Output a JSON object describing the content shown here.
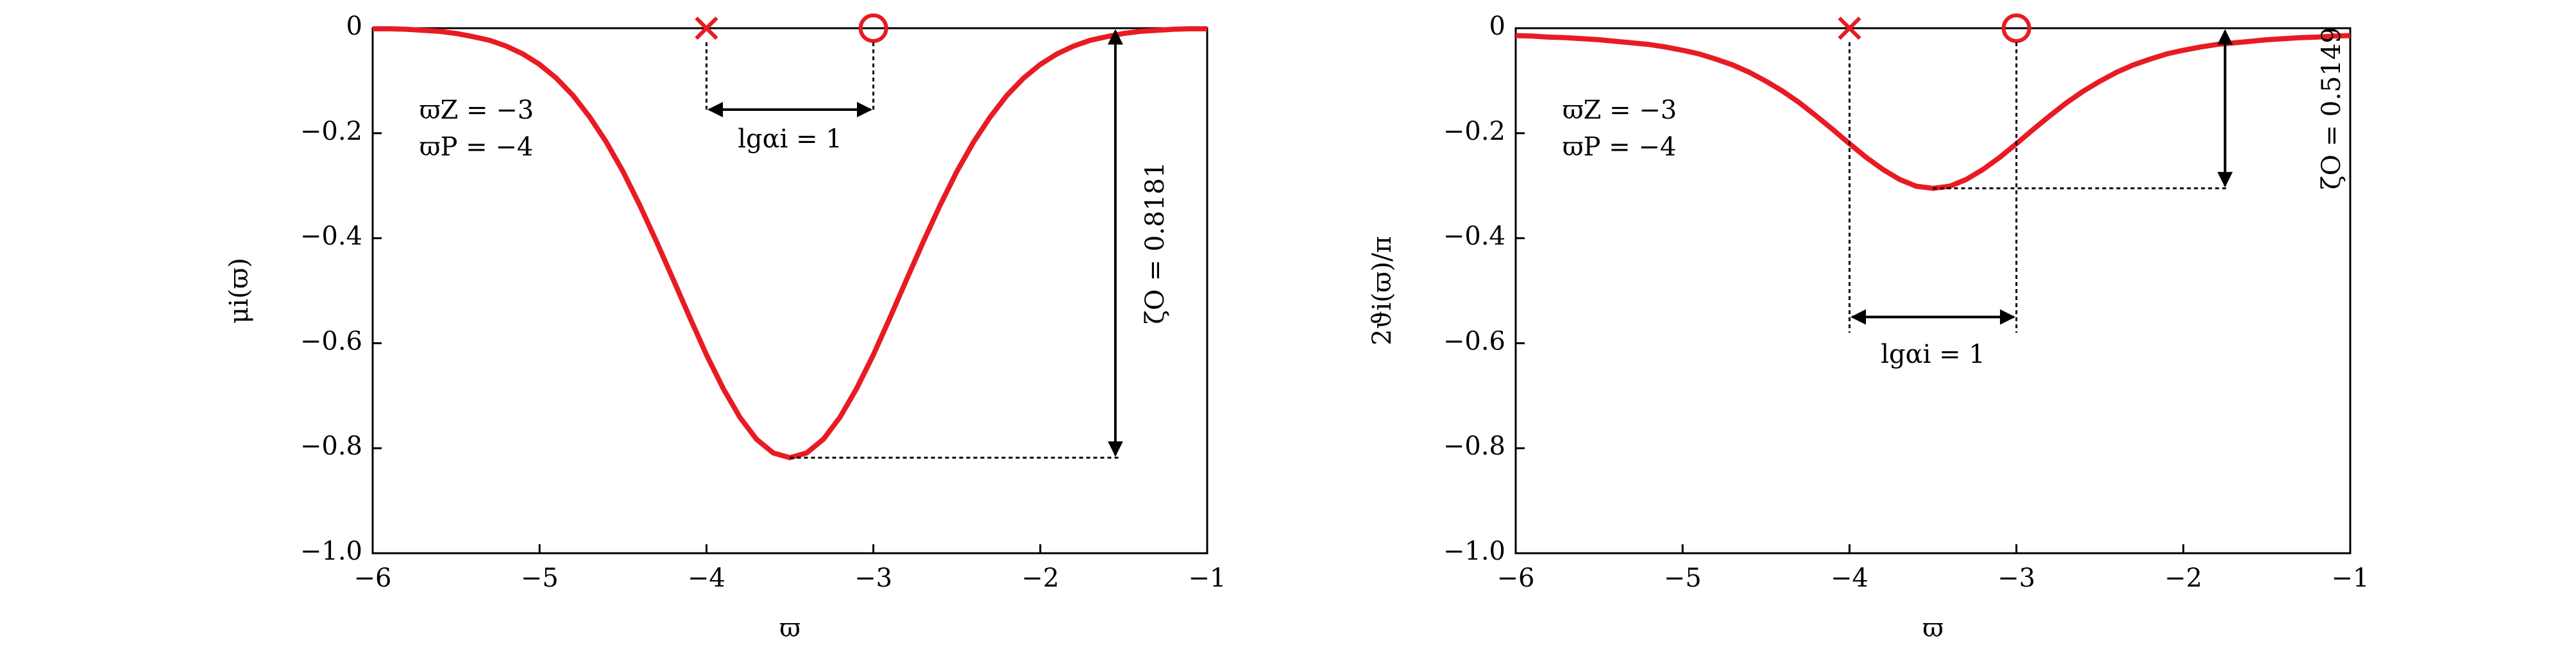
{
  "chart_data": [
    {
      "type": "line",
      "x_label": "ϖ",
      "y_label": "μi(ϖ)",
      "x": [
        -6.0,
        -5.9,
        -5.8,
        -5.7,
        -5.6,
        -5.5,
        -5.4,
        -5.3,
        -5.2,
        -5.1,
        -5.0,
        -4.9,
        -4.8,
        -4.7,
        -4.6,
        -4.5,
        -4.4,
        -4.3,
        -4.2,
        -4.1,
        -4.0,
        -3.9,
        -3.8,
        -3.7,
        -3.6,
        -3.5,
        -3.4,
        -3.3,
        -3.2,
        -3.1,
        -3.0,
        -2.9,
        -2.8,
        -2.7,
        -2.6,
        -2.5,
        -2.4,
        -2.3,
        -2.2,
        -2.1,
        -2.0,
        -1.9,
        -1.8,
        -1.7,
        -1.6,
        -1.5,
        -1.4,
        -1.3,
        -1.2,
        -1.1,
        -1.0
      ],
      "series": [
        {
          "color": "#e81b23",
          "values": [
            -0.001,
            -0.001,
            -0.002,
            -0.004,
            -0.006,
            -0.01,
            -0.016,
            -0.023,
            -0.034,
            -0.049,
            -0.069,
            -0.095,
            -0.128,
            -0.169,
            -0.217,
            -0.273,
            -0.337,
            -0.406,
            -0.478,
            -0.551,
            -0.622,
            -0.686,
            -0.741,
            -0.783,
            -0.809,
            -0.818,
            -0.809,
            -0.783,
            -0.741,
            -0.686,
            -0.622,
            -0.551,
            -0.478,
            -0.406,
            -0.337,
            -0.273,
            -0.217,
            -0.169,
            -0.128,
            -0.095,
            -0.069,
            -0.049,
            -0.034,
            -0.023,
            -0.016,
            -0.01,
            -0.006,
            -0.004,
            -0.002,
            -0.001,
            -0.001
          ]
        }
      ],
      "markers": [
        {
          "x": -4,
          "y": 0,
          "symbol": "x"
        },
        {
          "x": -3,
          "y": 0,
          "symbol": "o"
        }
      ],
      "notes": {
        "zero": "ϖZ = −3",
        "pole": "ϖP = −4",
        "span": "lgαi = 1",
        "depth": "ζO = 0.8181"
      },
      "xlim": [
        -6,
        -1
      ],
      "ylim": [
        -1,
        0
      ],
      "xticks": [
        {
          "value": -6,
          "label": "−6"
        },
        {
          "value": -5,
          "label": "−5"
        },
        {
          "value": -4,
          "label": "−4"
        },
        {
          "value": -3,
          "label": "−3"
        },
        {
          "value": -2,
          "label": "−2"
        },
        {
          "value": -1,
          "label": "−1"
        }
      ],
      "yticks": [
        0,
        {
          "value": -0.2,
          "label": "−0.2"
        },
        {
          "value": -0.4,
          "label": "−0.4"
        },
        {
          "value": -0.6,
          "label": "−0.6"
        },
        {
          "value": -0.8,
          "label": "−0.8"
        },
        {
          "value": -1.0,
          "label": "−1.0"
        }
      ]
    },
    {
      "type": "line",
      "x_label": "ϖ",
      "y_label": "2ϑi(ϖ)/π",
      "x": [
        -6.0,
        -5.9,
        -5.8,
        -5.7,
        -5.6,
        -5.5,
        -5.4,
        -5.3,
        -5.2,
        -5.1,
        -5.0,
        -4.9,
        -4.8,
        -4.7,
        -4.6,
        -4.5,
        -4.4,
        -4.3,
        -4.2,
        -4.1,
        -4.0,
        -3.9,
        -3.8,
        -3.7,
        -3.6,
        -3.5,
        -3.4,
        -3.3,
        -3.2,
        -3.1,
        -3.0,
        -2.9,
        -2.8,
        -2.7,
        -2.6,
        -2.5,
        -2.4,
        -2.3,
        -2.2,
        -2.1,
        -2.0,
        -1.9,
        -1.8,
        -1.7,
        -1.6,
        -1.5,
        -1.4,
        -1.3,
        -1.2,
        -1.1,
        -1.0
      ],
      "series": [
        {
          "color": "#e81b23",
          "values": [
            -0.014,
            -0.015,
            -0.017,
            -0.018,
            -0.02,
            -0.022,
            -0.025,
            -0.028,
            -0.031,
            -0.036,
            -0.042,
            -0.049,
            -0.059,
            -0.07,
            -0.084,
            -0.101,
            -0.12,
            -0.142,
            -0.167,
            -0.193,
            -0.22,
            -0.246,
            -0.269,
            -0.288,
            -0.301,
            -0.305,
            -0.301,
            -0.288,
            -0.269,
            -0.246,
            -0.22,
            -0.193,
            -0.167,
            -0.142,
            -0.12,
            -0.101,
            -0.084,
            -0.07,
            -0.059,
            -0.049,
            -0.042,
            -0.036,
            -0.031,
            -0.028,
            -0.025,
            -0.022,
            -0.02,
            -0.018,
            -0.017,
            -0.015,
            -0.014
          ]
        }
      ],
      "markers": [
        {
          "x": -4,
          "y": 0,
          "symbol": "x"
        },
        {
          "x": -3,
          "y": 0,
          "symbol": "o"
        }
      ],
      "notes": {
        "zero": "ϖZ = −3",
        "pole": "ϖP = −4",
        "span": "lgαi = 1",
        "depth": "ζO = 0.5149"
      },
      "xlim": [
        -6,
        -1
      ],
      "ylim": [
        -1,
        0
      ],
      "xticks": [
        {
          "value": -6,
          "label": "−6"
        },
        {
          "value": -5,
          "label": "−5"
        },
        {
          "value": -4,
          "label": "−4"
        },
        {
          "value": -3,
          "label": "−3"
        },
        {
          "value": -2,
          "label": "−2"
        },
        {
          "value": -1,
          "label": "−1"
        }
      ],
      "yticks": [
        0,
        {
          "value": -0.2,
          "label": "−0.2"
        },
        {
          "value": -0.4,
          "label": "−0.4"
        },
        {
          "value": -0.6,
          "label": "−0.6"
        },
        {
          "value": -0.8,
          "label": "−0.8"
        },
        {
          "value": -1.0,
          "label": "−1.0"
        }
      ]
    }
  ]
}
